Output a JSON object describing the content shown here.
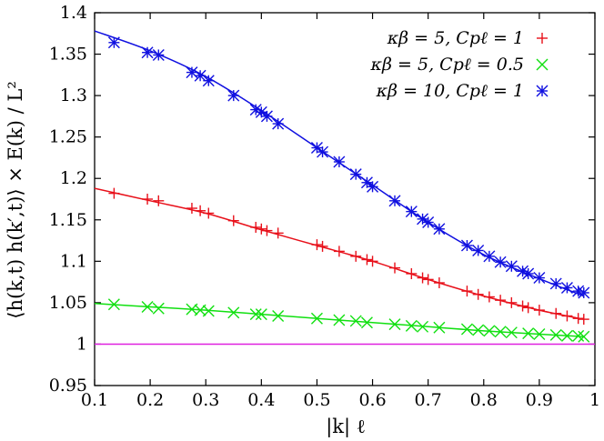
{
  "chart_data": {
    "type": "scatter",
    "title": "",
    "xlabel": "|k| ℓ",
    "ylabel": "⟨h(k,t) h(k′,t)⟩ × E(k) / L²",
    "xlim": [
      0.1,
      1.0
    ],
    "ylim": [
      0.95,
      1.4
    ],
    "x_ticks": [
      0.1,
      0.2,
      0.3,
      0.4,
      0.5,
      0.6,
      0.7,
      0.8,
      0.9,
      1.0
    ],
    "x_tick_labels": [
      "0.1",
      "0.2",
      "0.3",
      "0.4",
      "0.5",
      "0.6",
      "0.7",
      "0.8",
      "0.9",
      "1"
    ],
    "y_ticks": [
      0.95,
      1.0,
      1.05,
      1.1,
      1.15,
      1.2,
      1.25,
      1.3,
      1.35,
      1.4
    ],
    "y_tick_labels": [
      "0.95",
      "1",
      "1.05",
      "1.1",
      "1.15",
      "1.2",
      "1.25",
      "1.3",
      "1.35",
      "1.4"
    ],
    "grid": false,
    "legend_position": "top-right",
    "reference_line": {
      "y": 1.0,
      "color": "#e020e0"
    },
    "series": [
      {
        "name": "κβ = 5, Cpℓ = 1",
        "marker": "plus",
        "color": "#e8101a",
        "x": [
          0.135,
          0.195,
          0.215,
          0.275,
          0.29,
          0.305,
          0.35,
          0.39,
          0.4,
          0.41,
          0.43,
          0.5,
          0.51,
          0.54,
          0.57,
          0.59,
          0.6,
          0.64,
          0.67,
          0.69,
          0.7,
          0.72,
          0.77,
          0.79,
          0.81,
          0.83,
          0.85,
          0.87,
          0.88,
          0.9,
          0.93,
          0.95,
          0.97,
          0.98
        ],
        "y": [
          1.182,
          1.175,
          1.173,
          1.164,
          1.161,
          1.158,
          1.149,
          1.141,
          1.139,
          1.137,
          1.134,
          1.12,
          1.118,
          1.112,
          1.106,
          1.102,
          1.1,
          1.092,
          1.085,
          1.08,
          1.078,
          1.074,
          1.064,
          1.06,
          1.057,
          1.053,
          1.05,
          1.046,
          1.044,
          1.041,
          1.037,
          1.034,
          1.031,
          1.03
        ],
        "fit": {
          "x": [
            0.1,
            0.2,
            0.3,
            0.4,
            0.5,
            0.6,
            0.7,
            0.8,
            0.9,
            0.98
          ],
          "y": [
            1.188,
            1.173,
            1.158,
            1.138,
            1.119,
            1.1,
            1.078,
            1.058,
            1.041,
            1.03
          ]
        }
      },
      {
        "name": "κβ = 5, Cpℓ = 0.5",
        "marker": "cross",
        "color": "#10e010",
        "x": [
          0.135,
          0.195,
          0.215,
          0.275,
          0.29,
          0.305,
          0.35,
          0.39,
          0.4,
          0.43,
          0.5,
          0.54,
          0.57,
          0.59,
          0.64,
          0.67,
          0.69,
          0.72,
          0.77,
          0.79,
          0.81,
          0.83,
          0.85,
          0.88,
          0.9,
          0.93,
          0.95,
          0.97,
          0.98
        ],
        "y": [
          1.048,
          1.045,
          1.043,
          1.042,
          1.041,
          1.04,
          1.038,
          1.036,
          1.036,
          1.034,
          1.031,
          1.029,
          1.028,
          1.026,
          1.024,
          1.022,
          1.021,
          1.02,
          1.018,
          1.017,
          1.016,
          1.015,
          1.014,
          1.013,
          1.012,
          1.011,
          1.01,
          1.01,
          1.009
        ],
        "fit": {
          "x": [
            0.1,
            0.2,
            0.3,
            0.4,
            0.5,
            0.6,
            0.7,
            0.8,
            0.9,
            0.98
          ],
          "y": [
            1.049,
            1.045,
            1.041,
            1.036,
            1.031,
            1.026,
            1.021,
            1.016,
            1.012,
            1.009
          ]
        }
      },
      {
        "name": "κβ = 10, Cpℓ = 1",
        "marker": "star",
        "color": "#1010e0",
        "x": [
          0.135,
          0.195,
          0.215,
          0.275,
          0.29,
          0.305,
          0.35,
          0.39,
          0.4,
          0.41,
          0.43,
          0.5,
          0.51,
          0.54,
          0.57,
          0.59,
          0.6,
          0.64,
          0.67,
          0.69,
          0.7,
          0.72,
          0.77,
          0.79,
          0.81,
          0.83,
          0.85,
          0.87,
          0.88,
          0.9,
          0.93,
          0.95,
          0.97,
          0.98
        ],
        "y": [
          1.364,
          1.352,
          1.349,
          1.328,
          1.324,
          1.318,
          1.3,
          1.283,
          1.28,
          1.275,
          1.266,
          1.237,
          1.232,
          1.22,
          1.205,
          1.195,
          1.19,
          1.173,
          1.16,
          1.151,
          1.147,
          1.139,
          1.119,
          1.113,
          1.106,
          1.099,
          1.094,
          1.088,
          1.085,
          1.08,
          1.073,
          1.068,
          1.064,
          1.062
        ],
        "fit": {
          "x": [
            0.1,
            0.2,
            0.3,
            0.4,
            0.5,
            0.6,
            0.7,
            0.8,
            0.9,
            0.98
          ],
          "y": [
            1.378,
            1.354,
            1.323,
            1.282,
            1.237,
            1.192,
            1.147,
            1.108,
            1.079,
            1.058
          ]
        }
      }
    ]
  }
}
